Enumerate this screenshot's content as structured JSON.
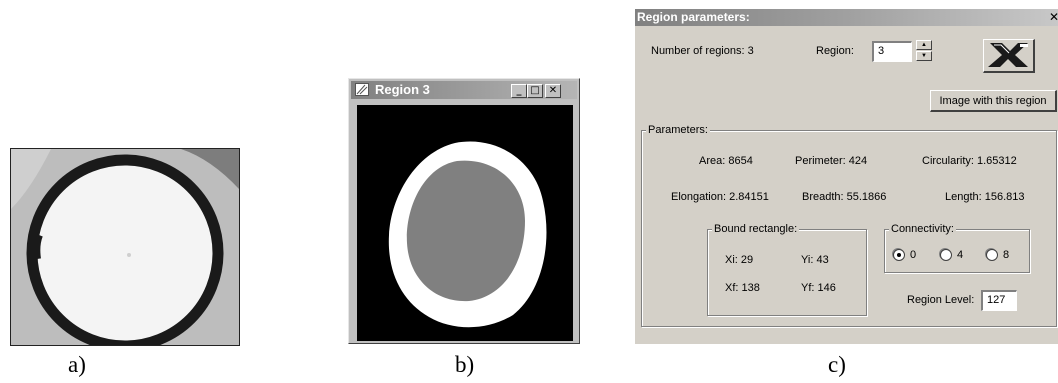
{
  "captions": {
    "a": "a)",
    "b": "b)",
    "c": "c)"
  },
  "region_window": {
    "title": "Region 3",
    "minimize": "_",
    "maximize": "□",
    "close": "✕",
    "colors": {
      "background": "#000000",
      "outer_region": "#ffffff",
      "inner_region": "#808080"
    }
  },
  "dialog": {
    "title": "Region parameters:",
    "close": "✕",
    "num_regions_label": "Number of regions: 3",
    "region_label": "Region:",
    "region_value": "3",
    "image_button": "Image with this region",
    "parameters_legend": "Parameters:",
    "area": "Area:  8654",
    "perimeter": "Perimeter:  424",
    "circularity": "Circularity:  1.65312",
    "elongation": "Elongation:  2.84151",
    "breadth": "Breadth:  55.1866",
    "length": "Length:  156.813",
    "bound_legend": "Bound rectangle:",
    "xi": "Xi:  29",
    "yi": "Yi:  43",
    "xf": "Xf:  138",
    "yf": "Yf:  146",
    "connectivity_legend": "Connectivity:",
    "conn_options": [
      "0",
      "4",
      "8"
    ],
    "conn_selected": "0",
    "region_level_label": "Region Level:",
    "region_level_value": "127"
  }
}
